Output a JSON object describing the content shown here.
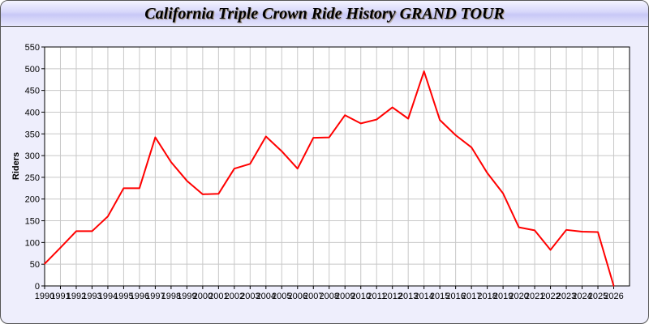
{
  "chart_data": {
    "type": "line",
    "title": "California Triple Crown Ride History GRAND TOUR",
    "xlabel": "",
    "ylabel": "Riders",
    "xlim": [
      1990,
      2027
    ],
    "ylim": [
      0,
      550
    ],
    "grid": true,
    "y_ticks": [
      0,
      50,
      100,
      150,
      200,
      250,
      300,
      350,
      400,
      450,
      500,
      550
    ],
    "x": [
      1990,
      1991,
      1992,
      1993,
      1994,
      1995,
      1996,
      1997,
      1998,
      1999,
      2000,
      2001,
      2002,
      2003,
      2004,
      2005,
      2006,
      2007,
      2008,
      2009,
      2010,
      2011,
      2012,
      2013,
      2014,
      2015,
      2016,
      2017,
      2018,
      2019,
      2020,
      2021,
      2022,
      2023,
      2024,
      2025,
      2026
    ],
    "series": [
      {
        "values": [
          51,
          88,
          126,
          126,
          160,
          225,
          225,
          342,
          285,
          242,
          211,
          212,
          270,
          281,
          344,
          310,
          270,
          341,
          342,
          393,
          374,
          383,
          411,
          385,
          494,
          382,
          347,
          319,
          260,
          213,
          135,
          128,
          83,
          129,
          125,
          124,
          0
        ],
        "color": "#ff0000"
      }
    ]
  }
}
